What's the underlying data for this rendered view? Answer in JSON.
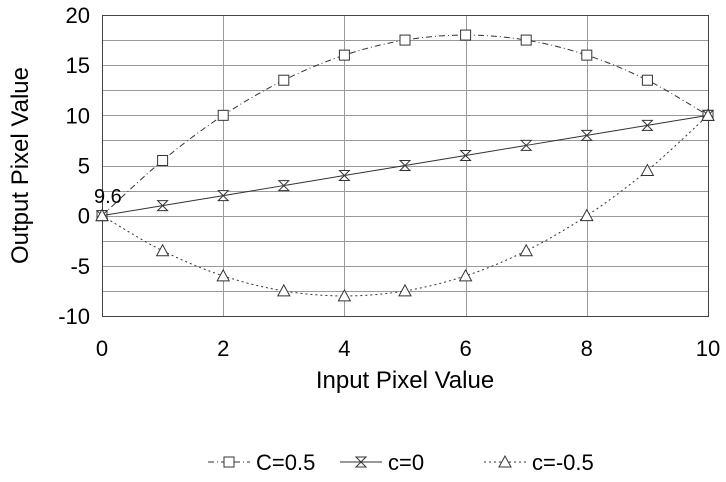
{
  "chart_data": {
    "type": "line",
    "title": "",
    "xlabel": "Input Pixel Value",
    "ylabel": "Output Pixel Value",
    "xlim": [
      0,
      10
    ],
    "ylim": [
      -10,
      20
    ],
    "x_ticks": [
      "0",
      "2",
      "4",
      "6",
      "8",
      "10"
    ],
    "y_ticks": [
      "20",
      "15",
      "10",
      "5",
      "0",
      "-5",
      "-10"
    ],
    "grid": true,
    "legend_position": "bottom",
    "annotation": "9.6",
    "x": [
      0,
      1,
      2,
      3,
      4,
      5,
      6,
      7,
      8,
      9,
      10
    ],
    "series": [
      {
        "name": "C=0.5",
        "marker": "square",
        "line_style": "dash-dot",
        "values": [
          0,
          5.5,
          10,
          13.5,
          16,
          17.5,
          18,
          17.5,
          16,
          13.5,
          10
        ]
      },
      {
        "name": "c=0",
        "marker": "bowtie",
        "line_style": "solid",
        "values": [
          0,
          1,
          2,
          3,
          4,
          5,
          6,
          7,
          8,
          9,
          10
        ]
      },
      {
        "name": "c=-0.5",
        "marker": "triangle",
        "line_style": "dotted",
        "values": [
          0,
          -3.5,
          -6,
          -7.5,
          -8,
          -7.5,
          -6,
          -3.5,
          0,
          4.5,
          10
        ]
      }
    ]
  }
}
